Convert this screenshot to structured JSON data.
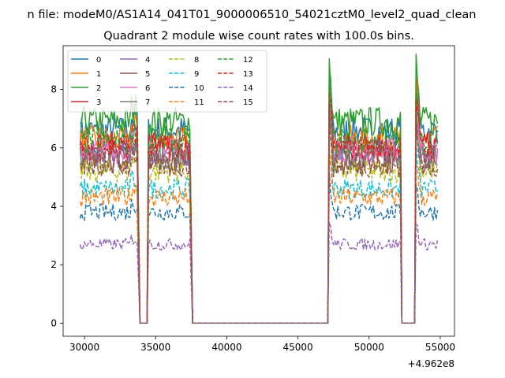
{
  "chart_data": {
    "type": "line",
    "suptitle": "n file: modeM0/AS1A14_041T01_9000006510_54021cztM0_level2_quad_clean",
    "title": "Quadrant 2 module wise count rates with 100.0s bins.",
    "xlabel": "",
    "ylabel": "",
    "x_offset_label": "+4.962e8",
    "xlim": [
      28500,
      56000
    ],
    "ylim": [
      -0.45,
      9.5
    ],
    "x_ticks": [
      30000,
      35000,
      40000,
      45000,
      50000,
      55000
    ],
    "x_tick_labels": [
      "30000",
      "35000",
      "40000",
      "45000",
      "50000",
      "55000"
    ],
    "y_ticks": [
      0,
      2,
      4,
      6,
      8
    ],
    "y_tick_labels": [
      "0",
      "2",
      "4",
      "6",
      "8"
    ],
    "grid": false,
    "legend_position": "top-left",
    "segments": [
      {
        "start": 29700,
        "end": 33700
      },
      {
        "start": 34500,
        "end": 37400
      },
      {
        "start": 47200,
        "end": 52200
      },
      {
        "start": 53300,
        "end": 54800
      }
    ],
    "gaps": [
      {
        "start": 33900,
        "end": 34400
      },
      {
        "start": 37600,
        "end": 47100
      },
      {
        "start": 52300,
        "end": 53200
      }
    ],
    "bin_width_s": 100,
    "series": [
      {
        "name": "0",
        "color": "#1f77b4",
        "dashed": false,
        "level": 6.6
      },
      {
        "name": "1",
        "color": "#ff7f0e",
        "dashed": false,
        "level": 6.3
      },
      {
        "name": "2",
        "color": "#2ca02c",
        "dashed": false,
        "level": 6.9
      },
      {
        "name": "3",
        "color": "#d62728",
        "dashed": false,
        "level": 6.1
      },
      {
        "name": "4",
        "color": "#9467bd",
        "dashed": false,
        "level": 5.8
      },
      {
        "name": "5",
        "color": "#8c564b",
        "dashed": false,
        "level": 5.5
      },
      {
        "name": "6",
        "color": "#e377c2",
        "dashed": false,
        "level": 5.9
      },
      {
        "name": "7",
        "color": "#7f7f7f",
        "dashed": false,
        "level": 5.7
      },
      {
        "name": "8",
        "color": "#bcbd22",
        "dashed": true,
        "level": 5.2
      },
      {
        "name": "9",
        "color": "#17becf",
        "dashed": true,
        "level": 4.6
      },
      {
        "name": "10",
        "color": "#1f77b4",
        "dashed": true,
        "level": 3.8
      },
      {
        "name": "11",
        "color": "#ff7f0e",
        "dashed": true,
        "level": 4.3
      },
      {
        "name": "12",
        "color": "#2ca02c",
        "dashed": true,
        "level": 6.2
      },
      {
        "name": "13",
        "color": "#d62728",
        "dashed": true,
        "level": 6.0
      },
      {
        "name": "14",
        "color": "#9467bd",
        "dashed": true,
        "level": 2.7
      },
      {
        "name": "15",
        "color": "#8c564b",
        "dashed": true,
        "level": 5.4
      }
    ]
  }
}
